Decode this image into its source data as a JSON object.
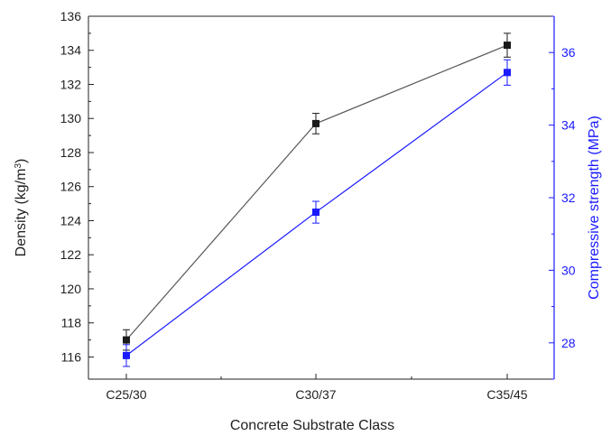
{
  "chart_data": {
    "type": "line",
    "title": "",
    "xlabel": "Concrete Substrate Class",
    "categories": [
      "C25/30",
      "C30/37",
      "C35/45"
    ],
    "y_left": {
      "label_main": "Density (kg/m",
      "label_sup": "3",
      "label_close": ")",
      "range": [
        114.7,
        136
      ],
      "ticks": [
        116,
        118,
        120,
        122,
        124,
        126,
        128,
        130,
        132,
        134,
        136
      ],
      "color": "#222222"
    },
    "y_right": {
      "label": "Compressive strength (MPa)",
      "range": [
        27,
        37
      ],
      "ticks": [
        28,
        30,
        32,
        34,
        36
      ],
      "color": "#1a1aff"
    },
    "series": [
      {
        "axis": "left",
        "color": "#1a1a1a",
        "line_color": "#555555",
        "values": [
          117.0,
          129.7,
          134.3
        ],
        "errors": [
          0.6,
          0.6,
          0.7
        ]
      },
      {
        "axis": "right",
        "color": "#1a1aff",
        "line_color": "#1a1aff",
        "values": [
          27.65,
          31.6,
          35.45
        ],
        "errors": [
          0.3,
          0.3,
          0.35
        ]
      }
    ],
    "grid": false,
    "legend": "none"
  }
}
